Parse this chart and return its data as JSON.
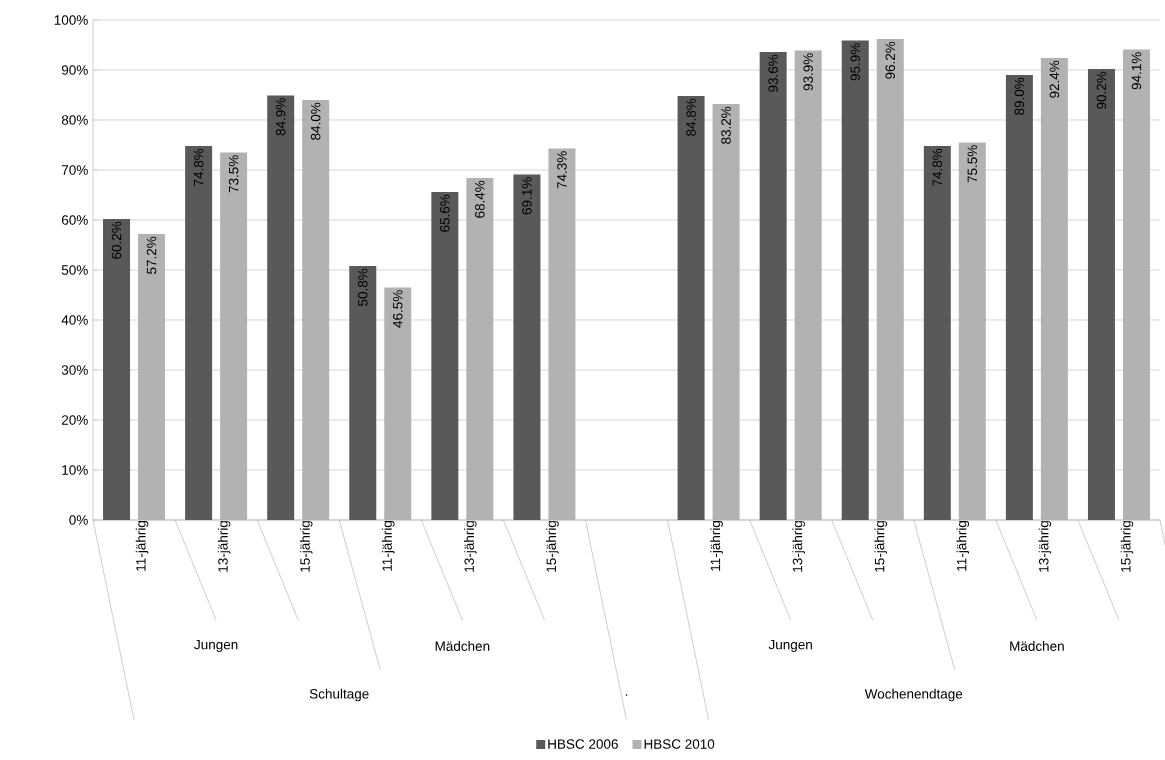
{
  "chart_data": {
    "type": "bar",
    "categories": [
      "11-jährig",
      "13-jährig",
      "15-jährig",
      "11-jährig",
      "13-jährig",
      "15-jährig",
      null,
      "11-jährig",
      "13-jährig",
      "15-jährig",
      "11-jährig",
      "13-jährig",
      "15-jährig"
    ],
    "series": [
      {
        "name": "HBSC 2006",
        "color": "#595959",
        "values": [
          60.2,
          74.8,
          84.9,
          50.8,
          65.6,
          69.1,
          null,
          84.8,
          93.6,
          95.9,
          74.8,
          89.0,
          90.2
        ],
        "value_labels": [
          "60.2%",
          "74.8%",
          "84.9%",
          "50.8%",
          "65.6%",
          "69.1%",
          null,
          "84.8%",
          "93.6%",
          "95.9%",
          "74.8%",
          "89.0%",
          "90.2%"
        ]
      },
      {
        "name": "HBSC 2010",
        "color": "#b2b2b2",
        "values": [
          57.2,
          73.5,
          84.0,
          46.5,
          68.4,
          74.3,
          null,
          83.2,
          93.9,
          96.2,
          75.5,
          92.4,
          94.1
        ],
        "value_labels": [
          "57.2%",
          "73.5%",
          "84.0%",
          "46.5%",
          "68.4%",
          "74.3%",
          null,
          "83.2%",
          "93.9%",
          "96.2%",
          "75.5%",
          "92.4%",
          "94.1%"
        ]
      }
    ],
    "annotations": [
      "Jungen",
      "Mädchen",
      "Jungen",
      "Mädchen",
      "Schultage",
      ".",
      "Wochenendtage"
    ],
    "ylim": [
      0,
      100
    ],
    "yticks": [
      {
        "value": 0,
        "label": "0%"
      },
      {
        "value": 10,
        "label": "10%"
      },
      {
        "value": 20,
        "label": "20%"
      },
      {
        "value": 30,
        "label": "30%"
      },
      {
        "value": 40,
        "label": "40%"
      },
      {
        "value": 50,
        "label": "50%"
      },
      {
        "value": 60,
        "label": "60%"
      },
      {
        "value": 70,
        "label": "70%"
      },
      {
        "value": 80,
        "label": "80%"
      },
      {
        "value": 90,
        "label": "90%"
      },
      {
        "value": 100,
        "label": "100%"
      }
    ],
    "grid": "y",
    "legend": "bottom"
  }
}
